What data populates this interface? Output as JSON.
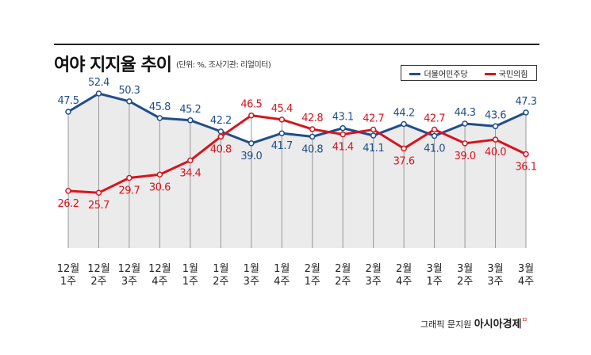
{
  "chart_data": {
    "type": "line",
    "title": "여야 지지율 추이",
    "subtitle": "(단위: %, 조사기관: 리얼미터)",
    "categories": [
      [
        "12월",
        "1주"
      ],
      [
        "12월",
        "2주"
      ],
      [
        "12월",
        "3주"
      ],
      [
        "12월",
        "4주"
      ],
      [
        "1월",
        "1주"
      ],
      [
        "1월",
        "2주"
      ],
      [
        "1월",
        "3주"
      ],
      [
        "1월",
        "4주"
      ],
      [
        "2월",
        "1주"
      ],
      [
        "2월",
        "2주"
      ],
      [
        "2월",
        "3주"
      ],
      [
        "2월",
        "4주"
      ],
      [
        "3월",
        "1주"
      ],
      [
        "3월",
        "2주"
      ],
      [
        "3월",
        "3주"
      ],
      [
        "3월",
        "4주"
      ]
    ],
    "series": [
      {
        "name": "더불어민주당",
        "color": "#1f4e8c",
        "values": [
          47.5,
          52.4,
          50.3,
          45.8,
          45.2,
          42.2,
          39.0,
          41.7,
          40.8,
          43.1,
          41.1,
          44.2,
          41.0,
          44.3,
          43.6,
          47.3
        ]
      },
      {
        "name": "국민의힘",
        "color": "#d7141e",
        "values": [
          26.2,
          25.7,
          29.7,
          30.6,
          34.4,
          40.8,
          46.5,
          45.4,
          42.8,
          41.4,
          42.7,
          37.6,
          42.7,
          39.0,
          40.0,
          36.1
        ]
      }
    ],
    "legend_position": "top-right",
    "grid": false,
    "area_fill_under_first_series": "#ebebeb"
  },
  "credit": {
    "text": "그래픽 문지원",
    "brand": "아시아경제"
  }
}
